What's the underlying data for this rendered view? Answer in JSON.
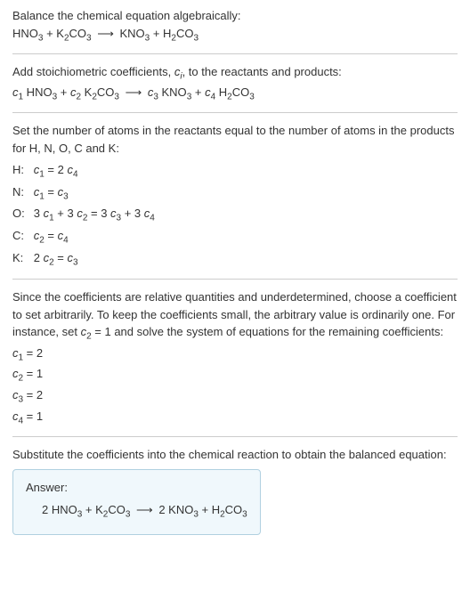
{
  "intro": {
    "line1": "Balance the chemical equation algebraically:",
    "reaction": {
      "r1": "HNO",
      "r1_sub": "3",
      "plus1": " + ",
      "r2": "K",
      "r2_sub": "2",
      "r2b": "CO",
      "r2b_sub": "3",
      "arrow": "⟶",
      "p1": "KNO",
      "p1_sub": "3",
      "plus2": " + ",
      "p2": "H",
      "p2_sub": "2",
      "p2b": "CO",
      "p2b_sub": "3"
    }
  },
  "stoich": {
    "intro_a": "Add stoichiometric coefficients, ",
    "ci": "c",
    "ci_sub": "i",
    "intro_b": ", to the reactants and products:",
    "reaction": {
      "c1": "c",
      "c1_sub": "1",
      "r1": " HNO",
      "r1_sub": "3",
      "plus1": " + ",
      "c2": "c",
      "c2_sub": "2",
      "r2": " K",
      "r2_sub": "2",
      "r2b": "CO",
      "r2b_sub": "3",
      "arrow": "⟶",
      "c3": "c",
      "c3_sub": "3",
      "p1": " KNO",
      "p1_sub": "3",
      "plus2": " + ",
      "c4": "c",
      "c4_sub": "4",
      "p2": " H",
      "p2_sub": "2",
      "p2b": "CO",
      "p2b_sub": "3"
    }
  },
  "atoms": {
    "intro": "Set the number of atoms in the reactants equal to the number of atoms in the products for H, N, O, C and K:",
    "rows": {
      "H": {
        "label": "H:",
        "lhs_c": "c",
        "lhs_sub": "1",
        "eq": " = 2 ",
        "rhs_c": "c",
        "rhs_sub": "4"
      },
      "N": {
        "label": "N:",
        "lhs_c": "c",
        "lhs_sub": "1",
        "eq": " = ",
        "rhs_c": "c",
        "rhs_sub": "3"
      },
      "O": {
        "label": "O:",
        "t1": "3 ",
        "c1": "c",
        "c1_sub": "1",
        "t2": " + 3 ",
        "c2": "c",
        "c2_sub": "2",
        "t3": " = 3 ",
        "c3": "c",
        "c3_sub": "3",
        "t4": " + 3 ",
        "c4": "c",
        "c4_sub": "4"
      },
      "C": {
        "label": "C:",
        "lhs_c": "c",
        "lhs_sub": "2",
        "eq": " = ",
        "rhs_c": "c",
        "rhs_sub": "4"
      },
      "K": {
        "label": "K:",
        "t1": "2 ",
        "lhs_c": "c",
        "lhs_sub": "2",
        "eq": " = ",
        "rhs_c": "c",
        "rhs_sub": "3"
      }
    }
  },
  "solve": {
    "intro_a": "Since the coefficients are relative quantities and underdetermined, choose a coefficient to set arbitrarily. To keep the coefficients small, the arbitrary value is ordinarily one. For instance, set ",
    "c2": "c",
    "c2_sub": "2",
    "intro_b": " = 1 and solve the system of equations for the remaining coefficients:",
    "coefs": {
      "c1": {
        "c": "c",
        "sub": "1",
        "val": " = 2"
      },
      "c2": {
        "c": "c",
        "sub": "2",
        "val": " = 1"
      },
      "c3": {
        "c": "c",
        "sub": "3",
        "val": " = 2"
      },
      "c4": {
        "c": "c",
        "sub": "4",
        "val": " = 1"
      }
    }
  },
  "final": {
    "intro": "Substitute the coefficients into the chemical reaction to obtain the balanced equation:",
    "answer_label": "Answer:",
    "reaction": {
      "t1": "2 HNO",
      "s1": "3",
      "plus1": " + K",
      "s2": "2",
      "t2": "CO",
      "s3": "3",
      "arrow": "⟶",
      "t3": "2 KNO",
      "s4": "3",
      "plus2": " + H",
      "s5": "2",
      "t4": "CO",
      "s6": "3"
    }
  }
}
